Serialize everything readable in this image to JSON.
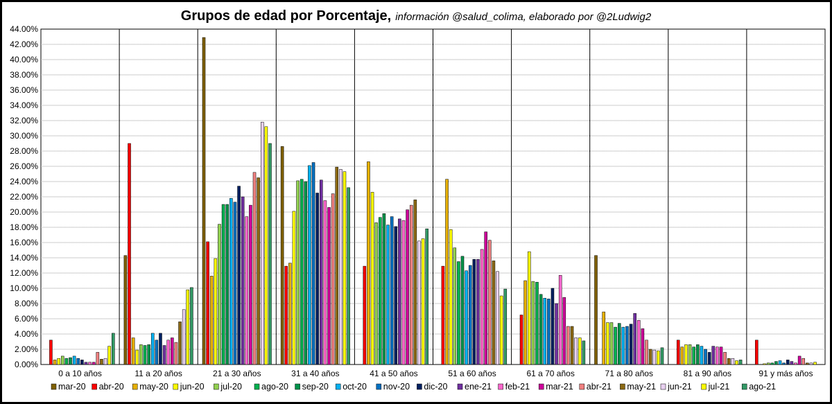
{
  "title": {
    "main": "Grupos de edad por Porcentaje,",
    "sub": "información @salud_colima, elaborado por @2Ludwig2"
  },
  "chart_data": {
    "type": "bar",
    "categories": [
      "0 a 10 años",
      "11 a 20 años",
      "21 a 30 años",
      "31 a 40 años",
      "41 a 50 años",
      "51 a 60 años",
      "61 a 70 años",
      "71 a 80 años",
      "81 a 90 años",
      "91 y más años"
    ],
    "ylim": [
      0,
      44
    ],
    "ystep": 2,
    "y_tick_format": "percent_2dec",
    "grid": true,
    "legend_position": "bottom",
    "series": [
      {
        "name": "mar-20",
        "color": "#7f6000",
        "values": [
          0,
          14.3,
          42.9,
          28.6,
          0,
          0,
          0,
          14.3,
          0,
          0
        ]
      },
      {
        "name": "abr-20",
        "color": "#ff0000",
        "values": [
          3.2,
          29.0,
          16.1,
          12.9,
          12.9,
          12.9,
          6.5,
          0,
          3.2,
          3.2
        ]
      },
      {
        "name": "may-20",
        "color": "#e6b000",
        "values": [
          0.6,
          3.5,
          11.6,
          13.3,
          26.6,
          24.3,
          11.0,
          6.9,
          2.3,
          0
        ]
      },
      {
        "name": "jun-20",
        "color": "#ffff00",
        "values": [
          0.8,
          1.9,
          13.9,
          20.1,
          22.6,
          17.7,
          14.8,
          5.5,
          2.6,
          0.1
        ]
      },
      {
        "name": "jul-20",
        "color": "#92d050",
        "values": [
          1.1,
          2.6,
          18.4,
          24.1,
          18.6,
          15.3,
          10.9,
          5.5,
          2.6,
          0.2
        ]
      },
      {
        "name": "ago-20",
        "color": "#00b050",
        "values": [
          0.8,
          2.5,
          21.0,
          24.3,
          19.3,
          13.5,
          10.8,
          4.9,
          2.3,
          0.2
        ]
      },
      {
        "name": "sep-20",
        "color": "#00924a",
        "values": [
          0.9,
          2.6,
          21.0,
          24.0,
          19.8,
          14.2,
          9.2,
          5.4,
          2.6,
          0.4
        ]
      },
      {
        "name": "oct-20",
        "color": "#00b0f0",
        "values": [
          1.1,
          4.1,
          21.8,
          26.1,
          18.3,
          12.3,
          8.7,
          4.9,
          2.4,
          0.5
        ]
      },
      {
        "name": "nov-20",
        "color": "#0070c0",
        "values": [
          0.8,
          3.2,
          21.3,
          26.5,
          19.4,
          13.0,
          8.6,
          5.0,
          2.0,
          0.2
        ]
      },
      {
        "name": "dic-20",
        "color": "#002060",
        "values": [
          0.6,
          4.1,
          23.4,
          22.5,
          18.1,
          13.8,
          10.0,
          5.3,
          1.6,
          0.6
        ]
      },
      {
        "name": "ene-21",
        "color": "#7030a0",
        "values": [
          0.3,
          2.5,
          22.0,
          24.2,
          19.1,
          13.8,
          8.0,
          6.7,
          2.4,
          0.4
        ]
      },
      {
        "name": "feb-21",
        "color": "#ff66cc",
        "values": [
          0.3,
          3.2,
          19.4,
          21.5,
          18.9,
          15.1,
          11.7,
          5.8,
          2.3,
          0.2
        ]
      },
      {
        "name": "mar-21",
        "color": "#cc0099",
        "values": [
          0.3,
          3.5,
          20.9,
          20.6,
          20.3,
          17.4,
          8.8,
          4.7,
          2.3,
          1.1
        ]
      },
      {
        "name": "abr-21",
        "color": "#f08080",
        "values": [
          1.6,
          2.9,
          25.2,
          22.4,
          20.9,
          16.3,
          5.0,
          3.2,
          1.6,
          0.8
        ]
      },
      {
        "name": "may-21",
        "color": "#8b6914",
        "values": [
          0.7,
          5.6,
          24.5,
          25.9,
          21.6,
          13.6,
          5.0,
          2.0,
          0.8,
          0.2
        ]
      },
      {
        "name": "jun-21",
        "color": "#e8d0f0",
        "values": [
          0.8,
          7.2,
          31.8,
          25.6,
          16.2,
          12.2,
          3.5,
          1.9,
          0.8,
          0.2
        ]
      },
      {
        "name": "jul-21",
        "color": "#ffff00",
        "values": [
          2.4,
          9.8,
          31.2,
          25.3,
          16.5,
          9.0,
          3.5,
          1.8,
          0.5,
          0.3
        ]
      },
      {
        "name": "ago-21",
        "color": "#339966",
        "values": [
          4.1,
          10.1,
          29.0,
          23.2,
          17.8,
          9.9,
          3.1,
          2.2,
          0.6,
          0
        ]
      }
    ]
  }
}
